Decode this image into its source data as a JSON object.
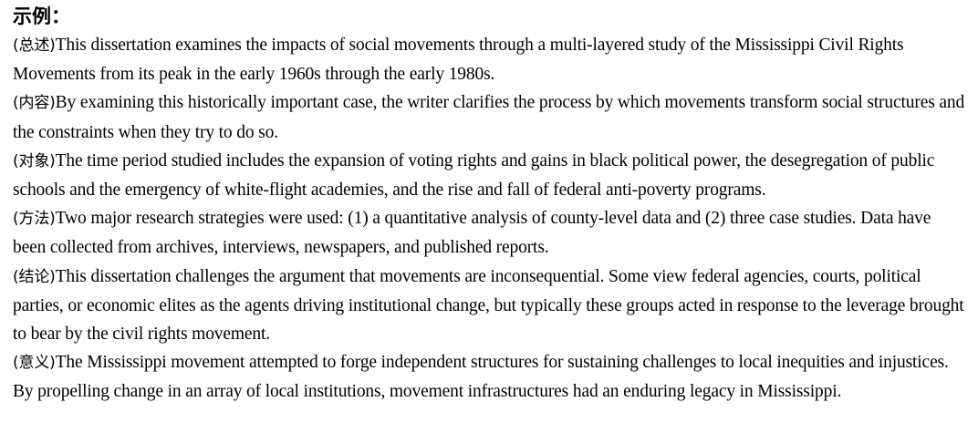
{
  "heading": "示例：",
  "paragraphs": [
    {
      "tag": "(总述)",
      "text": "This dissertation examines the impacts of social movements through a multi-layered study of the Mississippi Civil Rights Movements from its peak in the early 1960s through the early 1980s."
    },
    {
      "tag": "(内容)",
      "text": "By examining this historically important case, the writer clarifies the process by which movements transform social structures and the constraints when they try to do so."
    },
    {
      "tag": "(对象)",
      "text": "The time period studied includes the expansion of voting rights and gains in black political power, the desegregation of public schools and the emergency of white-flight academies, and the rise and fall of federal anti-poverty programs."
    },
    {
      "tag": "(方法)",
      "text": "Two major research strategies were used: (1) a quantitative analysis of county-level data and (2) three case studies. Data have been collected from archives, interviews, newspapers, and published reports."
    },
    {
      "tag": "(结论)",
      "text": "This dissertation challenges the argument that movements are inconsequential. Some view federal agencies, courts, political parties, or economic elites as the agents driving institutional change, but typically these groups acted in response to the leverage brought to bear by the civil rights movement."
    },
    {
      "tag": "(意义)",
      "text": "The Mississippi movement attempted to forge independent structures for sustaining challenges to local inequities and injustices. By propelling change in an array of local institutions, movement infrastructures had an enduring legacy in Mississippi."
    }
  ]
}
